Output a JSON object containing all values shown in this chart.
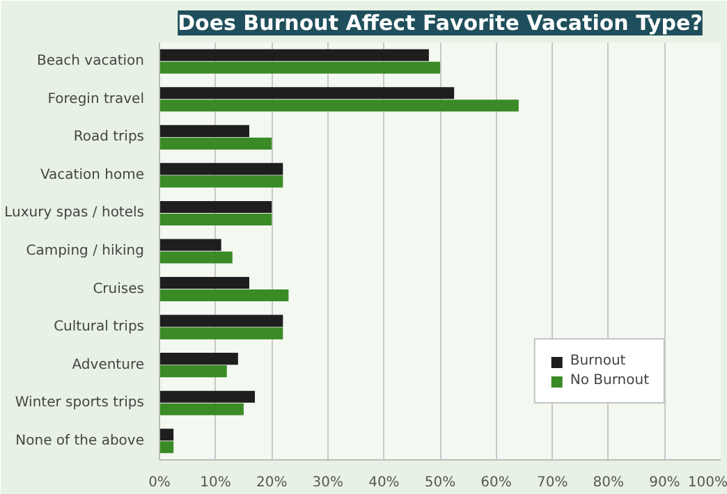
{
  "chart_data": {
    "type": "bar",
    "orientation": "horizontal",
    "title": "Does Burnout Affect Favorite Vacation Type?",
    "categories": [
      "Beach vacation",
      "Foregin travel",
      "Road trips",
      "Vacation home",
      "Luxury spas / hotels",
      "Camping / hiking",
      "Cruises",
      "Cultural trips",
      "Adventure",
      "Winter sports trips",
      "None of the above"
    ],
    "series": [
      {
        "name": "Burnout",
        "color": "#1e1e1e",
        "values": [
          48,
          52.5,
          16,
          22,
          20,
          11,
          16,
          22,
          14,
          17,
          2.5
        ]
      },
      {
        "name": "No Burnout",
        "color": "#3a8a26",
        "values": [
          50,
          64,
          20,
          22,
          20,
          13,
          23,
          22,
          12,
          15,
          2.5
        ]
      }
    ],
    "xlim": [
      0,
      100
    ],
    "xticks": [
      {
        "value": 0,
        "label": "0%"
      },
      {
        "value": 10,
        "label": "10%"
      },
      {
        "value": 20,
        "label": "20%"
      },
      {
        "value": 30,
        "label": "30%"
      },
      {
        "value": 40,
        "label": "40%"
      },
      {
        "value": 50,
        "label": "50%"
      },
      {
        "value": 60,
        "label": "60%"
      },
      {
        "value": 70,
        "label": "70%"
      },
      {
        "value": 80,
        "label": "80%"
      },
      {
        "value": 90,
        "label": "90%"
      },
      {
        "value": 100,
        "label": "100%"
      }
    ],
    "grid": "x",
    "legend": "bottom right"
  }
}
